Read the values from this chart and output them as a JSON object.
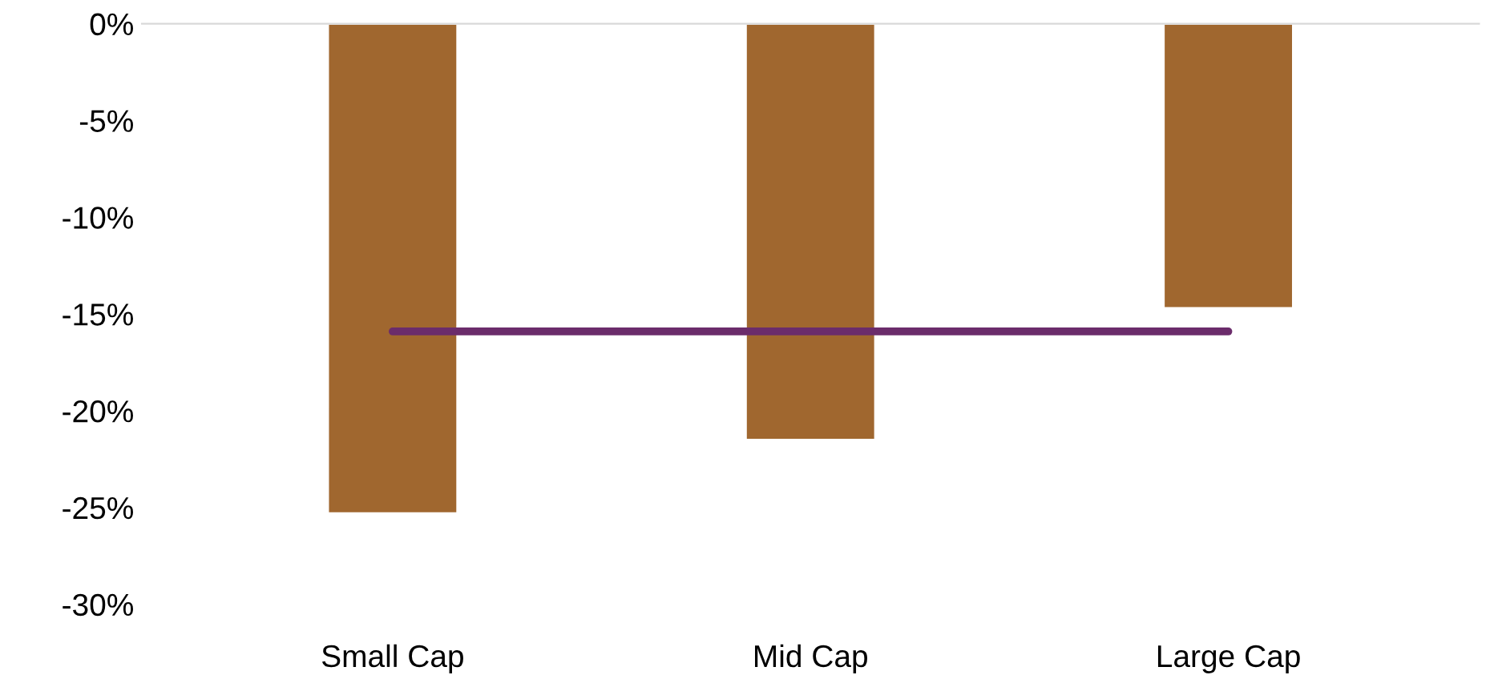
{
  "chart_data": {
    "type": "bar",
    "categories": [
      "Small Cap",
      "Mid Cap",
      "Large Cap"
    ],
    "series": [
      {
        "color": "#a0672f",
        "values": [
          -25.3,
          -21.5,
          -14.7
        ]
      },
      {
        "type": "line",
        "color": "#6b2c6b",
        "values": [
          -15.9,
          -15.9,
          -15.9
        ]
      }
    ],
    "ylim": [
      -30,
      0
    ],
    "yticks": [
      {
        "value": 0,
        "label": "0%"
      },
      {
        "value": -5,
        "label": "-5%"
      },
      {
        "value": -10,
        "label": "-10%"
      },
      {
        "value": -15,
        "label": "-15%"
      },
      {
        "value": -20,
        "label": "-20%"
      },
      {
        "value": -25,
        "label": "-25%"
      },
      {
        "value": -30,
        "label": "-30%"
      }
    ],
    "grid": false
  }
}
